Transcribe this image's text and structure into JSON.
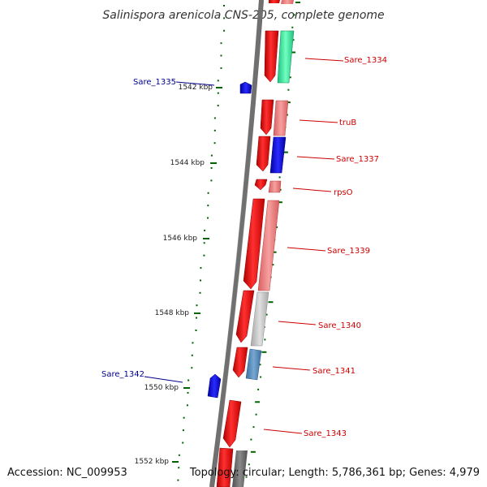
{
  "title": "Salinispora arenicola CNS-205, complete genome",
  "footer": {
    "accession": "Accession: NC_009953",
    "summary": "Topology: circular; Length: 5,786,361 bp; Genes: 4,979"
  },
  "ticks": [
    "1542 kbp",
    "1544 kbp",
    "1546 kbp",
    "1548 kbp",
    "1550 kbp",
    "1552 kbp"
  ],
  "genes": [
    {
      "label": "Sare_1335",
      "side": "left",
      "color": "#00008b"
    },
    {
      "label": "Sare_1334",
      "side": "right",
      "color": "#cc0000"
    },
    {
      "label": "truB",
      "side": "right",
      "color": "#cc0000"
    },
    {
      "label": "Sare_1337",
      "side": "right",
      "color": "#cc0000"
    },
    {
      "label": "rpsO",
      "side": "right",
      "color": "#cc0000"
    },
    {
      "label": "Sare_1339",
      "side": "right",
      "color": "#cc0000"
    },
    {
      "label": "Sare_1340",
      "side": "right",
      "color": "#cc0000"
    },
    {
      "label": "Sare_1341",
      "side": "right",
      "color": "#cc0000"
    },
    {
      "label": "Sare_1342",
      "side": "left",
      "color": "#00008b"
    },
    {
      "label": "Sare_1343",
      "side": "right",
      "color": "#cc0000"
    }
  ],
  "colors": {
    "forward_cds": "#ff0000",
    "reverse_cds": "#0000ff",
    "backbone": "#808080",
    "gc_dots": "#006400",
    "tick_marks": "#006400"
  }
}
